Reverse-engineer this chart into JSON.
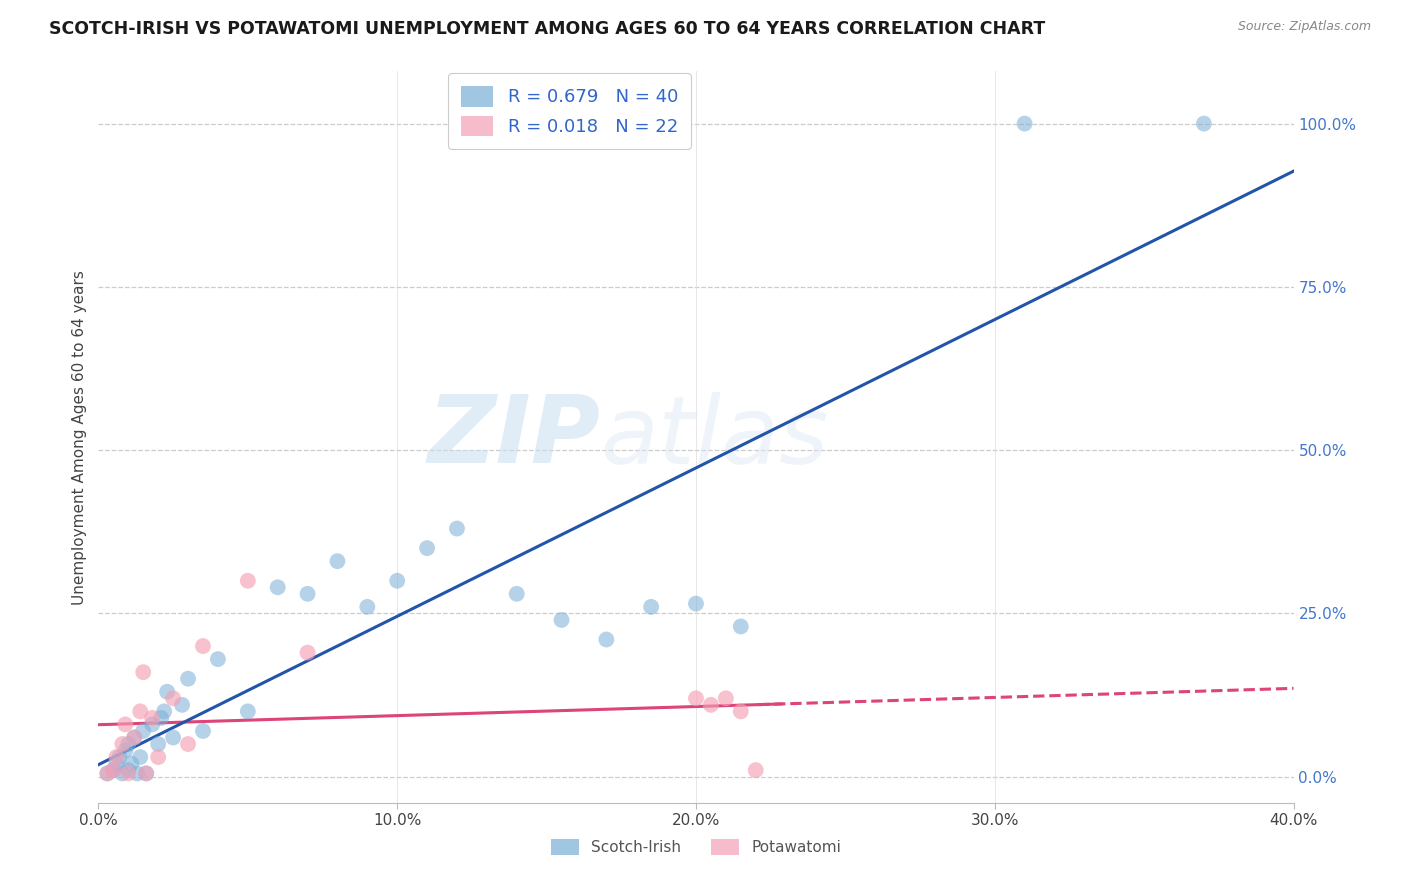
{
  "title": "SCOTCH-IRISH VS POTAWATOMI UNEMPLOYMENT AMONG AGES 60 TO 64 YEARS CORRELATION CHART",
  "source": "Source: ZipAtlas.com",
  "ylabel": "Unemployment Among Ages 60 to 64 years",
  "x_min": 0.0,
  "x_max": 0.4,
  "y_min": -0.04,
  "y_max": 1.08,
  "x_ticks": [
    0.0,
    0.1,
    0.2,
    0.3,
    0.4
  ],
  "x_tick_labels": [
    "0.0%",
    "10.0%",
    "20.0%",
    "30.0%",
    "40.0%"
  ],
  "y_ticks": [
    0.0,
    0.25,
    0.5,
    0.75,
    1.0
  ],
  "y_tick_labels": [
    "0.0%",
    "25.0%",
    "50.0%",
    "75.0%",
    "100.0%"
  ],
  "watermark_zip": "ZIP",
  "watermark_atlas": "atlas",
  "scotch_irish_color": "#7aaed6",
  "potawatomi_color": "#f4a0b5",
  "scotch_irish_line_color": "#2255aa",
  "potawatomi_line_color": "#dd4477",
  "scotch_irish_R": 0.679,
  "scotch_irish_N": 40,
  "potawatomi_R": 0.018,
  "potawatomi_N": 22,
  "scotch_irish_x": [
    0.003,
    0.005,
    0.006,
    0.007,
    0.008,
    0.009,
    0.01,
    0.01,
    0.011,
    0.012,
    0.013,
    0.014,
    0.015,
    0.016,
    0.018,
    0.02,
    0.021,
    0.022,
    0.023,
    0.025,
    0.028,
    0.03,
    0.035,
    0.04,
    0.05,
    0.06,
    0.07,
    0.08,
    0.09,
    0.1,
    0.11,
    0.12,
    0.14,
    0.155,
    0.17,
    0.185,
    0.2,
    0.215,
    0.31,
    0.37
  ],
  "scotch_irish_y": [
    0.005,
    0.01,
    0.02,
    0.03,
    0.005,
    0.04,
    0.01,
    0.05,
    0.02,
    0.06,
    0.005,
    0.03,
    0.07,
    0.005,
    0.08,
    0.05,
    0.09,
    0.1,
    0.13,
    0.06,
    0.11,
    0.15,
    0.07,
    0.18,
    0.1,
    0.29,
    0.28,
    0.33,
    0.26,
    0.3,
    0.35,
    0.38,
    0.28,
    0.24,
    0.21,
    0.26,
    0.265,
    0.23,
    1.0,
    1.0
  ],
  "potawatomi_x": [
    0.003,
    0.005,
    0.006,
    0.008,
    0.009,
    0.01,
    0.012,
    0.014,
    0.015,
    0.016,
    0.018,
    0.02,
    0.025,
    0.03,
    0.035,
    0.05,
    0.07,
    0.2,
    0.205,
    0.21,
    0.215,
    0.22
  ],
  "potawatomi_y": [
    0.005,
    0.01,
    0.03,
    0.05,
    0.08,
    0.005,
    0.06,
    0.1,
    0.16,
    0.005,
    0.09,
    0.03,
    0.12,
    0.05,
    0.2,
    0.3,
    0.19,
    0.12,
    0.11,
    0.12,
    0.1,
    0.01
  ]
}
